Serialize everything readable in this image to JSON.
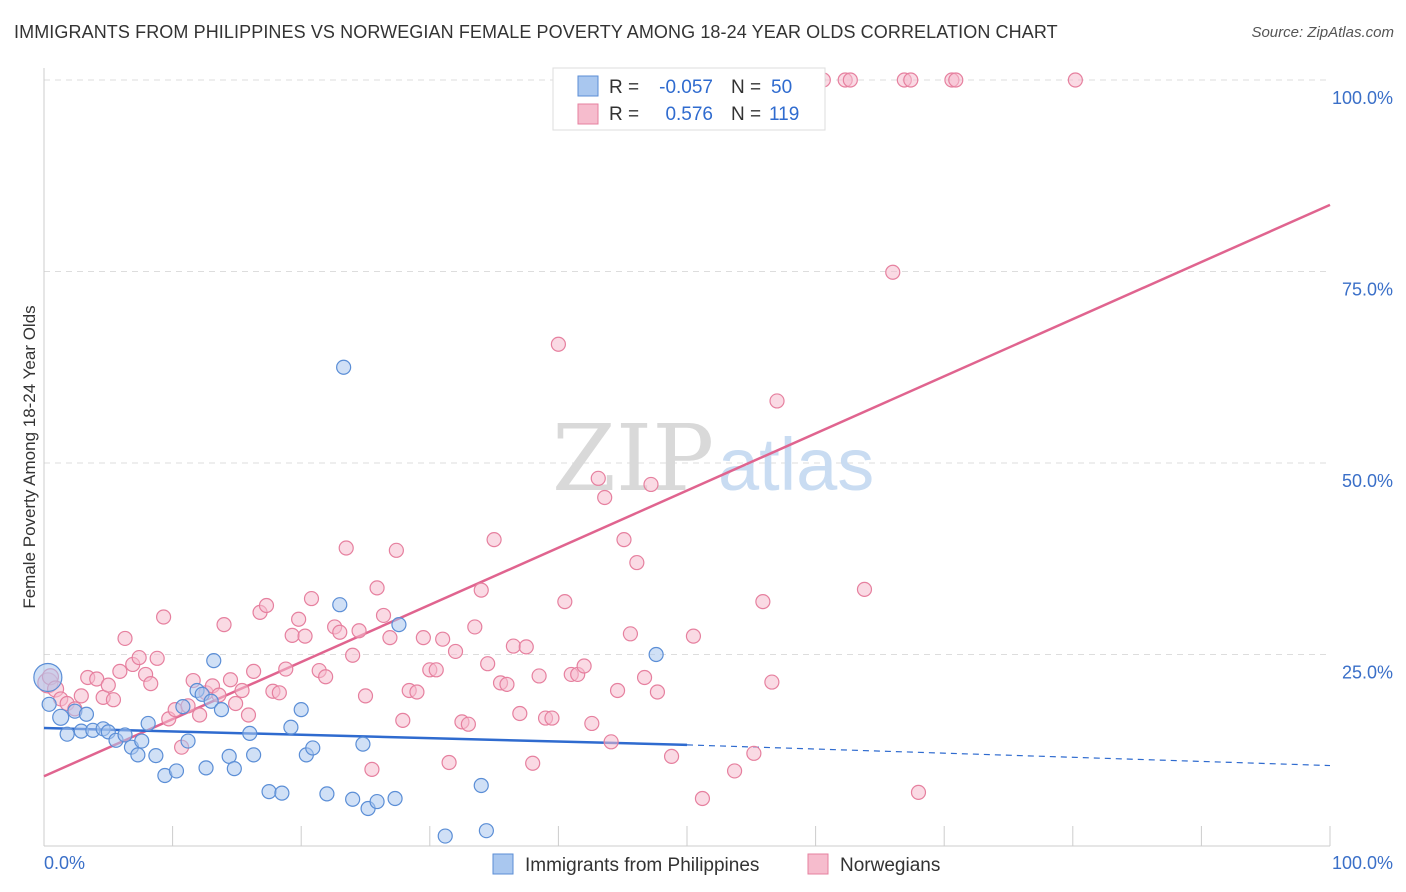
{
  "title": "IMMIGRANTS FROM PHILIPPINES VS NORWEGIAN FEMALE POVERTY AMONG 18-24 YEAR OLDS CORRELATION CHART",
  "source": "Source: ZipAtlas.com",
  "watermark": {
    "zip": "ZIP",
    "atlas": "atlas"
  },
  "legend": {
    "rows": [
      {
        "r_label": "R =",
        "r_value": "-0.057",
        "n_label": "N =",
        "n_value": "50"
      },
      {
        "r_label": "R =",
        "r_value": "0.576",
        "n_label": "N =",
        "n_value": "119"
      }
    ]
  },
  "colors": {
    "blue_fill": "#a9c7ef",
    "blue_stroke": "#5b8ed6",
    "blue_line": "#2f6bcf",
    "pink_fill": "#f6bccd",
    "pink_stroke": "#e6809f",
    "pink_line": "#e0648f",
    "grid": "#dddddd",
    "tick_label": "#3a6fc8"
  },
  "chart_data": {
    "type": "scatter",
    "title": "IMMIGRANTS FROM PHILIPPINES VS NORWEGIAN FEMALE POVERTY AMONG 18-24 YEAR OLDS CORRELATION CHART",
    "xlabel": "",
    "ylabel": "Female Poverty Among 18-24 Year Olds",
    "xlim": [
      0,
      100
    ],
    "ylim": [
      0,
      100
    ],
    "x_tick_labels": [
      "0.0%",
      "100.0%"
    ],
    "y_ticks": [
      25,
      50,
      75,
      100
    ],
    "y_tick_labels": [
      "25.0%",
      "50.0%",
      "75.0%",
      "100.0%"
    ],
    "grid": true,
    "legend_placement": "bottom",
    "series": [
      {
        "name": "Immigrants from Philippines",
        "color": "blue",
        "R": -0.057,
        "N": 50,
        "trend": {
          "x0": 0,
          "y0": 15.4,
          "x1": 50,
          "y1": 13.2,
          "dashed_to_x": 100,
          "dashed_to_y": 10.5
        },
        "points": [
          [
            0.3,
            22.0,
            14
          ],
          [
            0.4,
            18.5,
            7
          ],
          [
            1.3,
            16.8,
            8
          ],
          [
            1.8,
            14.6,
            7
          ],
          [
            2.4,
            17.6,
            7
          ],
          [
            2.9,
            15.0,
            7
          ],
          [
            3.3,
            17.2,
            7
          ],
          [
            3.8,
            15.1,
            7
          ],
          [
            4.6,
            15.3,
            7
          ],
          [
            5.0,
            14.9,
            7
          ],
          [
            5.6,
            13.8,
            7
          ],
          [
            6.3,
            14.5,
            7
          ],
          [
            6.8,
            12.9,
            7
          ],
          [
            7.3,
            11.9,
            7
          ],
          [
            7.6,
            13.7,
            7
          ],
          [
            8.1,
            16.0,
            7
          ],
          [
            8.7,
            11.8,
            7
          ],
          [
            9.4,
            9.2,
            7
          ],
          [
            10.3,
            9.8,
            7
          ],
          [
            10.8,
            18.2,
            7
          ],
          [
            11.2,
            13.7,
            7
          ],
          [
            11.9,
            20.3,
            7
          ],
          [
            12.3,
            19.8,
            7
          ],
          [
            12.6,
            10.2,
            7
          ],
          [
            13.0,
            18.9,
            7
          ],
          [
            13.2,
            24.2,
            7
          ],
          [
            13.8,
            17.8,
            7
          ],
          [
            14.4,
            11.7,
            7
          ],
          [
            14.8,
            10.1,
            7
          ],
          [
            16.0,
            14.7,
            7
          ],
          [
            16.3,
            11.9,
            7
          ],
          [
            17.5,
            7.1,
            7
          ],
          [
            18.5,
            6.9,
            7
          ],
          [
            19.2,
            15.5,
            7
          ],
          [
            20.0,
            17.8,
            7
          ],
          [
            20.4,
            11.9,
            7
          ],
          [
            20.9,
            12.8,
            7
          ],
          [
            22.0,
            6.8,
            7
          ],
          [
            23.0,
            31.5,
            7
          ],
          [
            23.3,
            62.5,
            7
          ],
          [
            24.0,
            6.1,
            7
          ],
          [
            24.8,
            13.3,
            7
          ],
          [
            25.2,
            4.9,
            7
          ],
          [
            25.9,
            5.8,
            7
          ],
          [
            27.3,
            6.2,
            7
          ],
          [
            27.6,
            28.9,
            7
          ],
          [
            31.2,
            1.3,
            7
          ],
          [
            34.0,
            7.9,
            7
          ],
          [
            34.4,
            2.0,
            7
          ],
          [
            47.6,
            25.0,
            7
          ]
        ]
      },
      {
        "name": "Norwegians",
        "color": "pink",
        "R": 0.576,
        "N": 119,
        "trend": {
          "x0": 0,
          "y0": 9.1,
          "x1": 100,
          "y1": 83.7
        },
        "points": [
          [
            0.3,
            21.3,
            10
          ],
          [
            0.5,
            22.1,
            8
          ],
          [
            0.9,
            20.5,
            8
          ],
          [
            1.3,
            19.2,
            7
          ],
          [
            1.8,
            18.6,
            7
          ],
          [
            2.4,
            17.9,
            7
          ],
          [
            2.9,
            19.6,
            7
          ],
          [
            3.4,
            22.0,
            7
          ],
          [
            4.1,
            21.8,
            7
          ],
          [
            4.6,
            19.4,
            7
          ],
          [
            5.0,
            21.0,
            7
          ],
          [
            5.4,
            19.1,
            7
          ],
          [
            5.9,
            22.8,
            7
          ],
          [
            6.3,
            27.1,
            7
          ],
          [
            6.9,
            23.7,
            7
          ],
          [
            7.4,
            24.6,
            7
          ],
          [
            7.9,
            22.4,
            7
          ],
          [
            8.3,
            21.2,
            7
          ],
          [
            8.8,
            24.5,
            7
          ],
          [
            9.3,
            29.9,
            7
          ],
          [
            9.7,
            16.6,
            7
          ],
          [
            10.2,
            17.8,
            7
          ],
          [
            10.7,
            12.9,
            7
          ],
          [
            11.2,
            18.3,
            7
          ],
          [
            11.6,
            21.6,
            7
          ],
          [
            12.1,
            17.1,
            7
          ],
          [
            12.6,
            20.0,
            7
          ],
          [
            13.1,
            20.9,
            7
          ],
          [
            13.6,
            19.7,
            7
          ],
          [
            14.0,
            28.9,
            7
          ],
          [
            14.5,
            21.7,
            7
          ],
          [
            14.9,
            18.6,
            7
          ],
          [
            15.4,
            20.3,
            7
          ],
          [
            15.9,
            17.1,
            7
          ],
          [
            16.3,
            22.8,
            7
          ],
          [
            16.8,
            30.5,
            7
          ],
          [
            17.3,
            31.4,
            7
          ],
          [
            17.8,
            20.2,
            7
          ],
          [
            18.3,
            20.0,
            7
          ],
          [
            18.8,
            23.1,
            7
          ],
          [
            19.3,
            27.5,
            7
          ],
          [
            19.8,
            29.6,
            7
          ],
          [
            20.3,
            27.4,
            7
          ],
          [
            20.8,
            32.3,
            7
          ],
          [
            21.4,
            22.9,
            7
          ],
          [
            21.9,
            22.1,
            7
          ],
          [
            22.6,
            28.6,
            7
          ],
          [
            23.0,
            27.9,
            7
          ],
          [
            23.5,
            38.9,
            7
          ],
          [
            24.0,
            24.9,
            7
          ],
          [
            24.5,
            28.1,
            7
          ],
          [
            25.0,
            19.6,
            7
          ],
          [
            25.5,
            10.0,
            7
          ],
          [
            25.9,
            33.7,
            7
          ],
          [
            26.4,
            30.1,
            7
          ],
          [
            26.9,
            27.2,
            7
          ],
          [
            27.4,
            38.6,
            7
          ],
          [
            27.9,
            16.4,
            7
          ],
          [
            28.4,
            20.3,
            7
          ],
          [
            29.0,
            20.1,
            7
          ],
          [
            29.5,
            27.2,
            7
          ],
          [
            30.0,
            23.0,
            7
          ],
          [
            30.5,
            23.0,
            7
          ],
          [
            31.0,
            27.0,
            7
          ],
          [
            31.5,
            10.9,
            7
          ],
          [
            32.0,
            25.4,
            7
          ],
          [
            32.5,
            16.2,
            7
          ],
          [
            33.0,
            15.9,
            7
          ],
          [
            33.5,
            28.6,
            7
          ],
          [
            34.0,
            33.4,
            7
          ],
          [
            34.5,
            23.8,
            7
          ],
          [
            35.0,
            40.0,
            7
          ],
          [
            35.5,
            21.3,
            7
          ],
          [
            36.0,
            21.1,
            7
          ],
          [
            36.5,
            26.1,
            7
          ],
          [
            37.0,
            17.3,
            7
          ],
          [
            37.5,
            26.0,
            7
          ],
          [
            38.0,
            10.8,
            7
          ],
          [
            38.5,
            22.2,
            7
          ],
          [
            39.0,
            16.7,
            7
          ],
          [
            39.5,
            16.7,
            7
          ],
          [
            40.0,
            65.5,
            7
          ],
          [
            40.5,
            31.9,
            7
          ],
          [
            41.0,
            22.4,
            7
          ],
          [
            41.5,
            22.4,
            7
          ],
          [
            42.0,
            23.5,
            7
          ],
          [
            42.6,
            16.0,
            7
          ],
          [
            43.1,
            48.0,
            7
          ],
          [
            43.6,
            45.5,
            7
          ],
          [
            44.1,
            13.6,
            7
          ],
          [
            44.6,
            20.3,
            7
          ],
          [
            45.1,
            40.0,
            7
          ],
          [
            45.6,
            27.7,
            7
          ],
          [
            46.1,
            37.0,
            7
          ],
          [
            46.7,
            22.0,
            7
          ],
          [
            47.2,
            47.2,
            7
          ],
          [
            47.7,
            20.1,
            7
          ],
          [
            48.8,
            11.7,
            7
          ],
          [
            50.5,
            27.4,
            7
          ],
          [
            51.2,
            6.2,
            7
          ],
          [
            53.7,
            9.8,
            7
          ],
          [
            55.9,
            31.9,
            7
          ],
          [
            56.6,
            21.4,
            7
          ],
          [
            57.0,
            58.1,
            7
          ],
          [
            63.8,
            33.5,
            7
          ],
          [
            66.0,
            74.9,
            7
          ],
          [
            68.0,
            7.0,
            7
          ],
          [
            55.2,
            12.1,
            7
          ],
          [
            56.9,
            100.0,
            7
          ],
          [
            60.2,
            100.0,
            7
          ],
          [
            60.6,
            100.0,
            7
          ],
          [
            62.3,
            100.0,
            7
          ],
          [
            62.7,
            100.0,
            7
          ],
          [
            66.9,
            100.0,
            7
          ],
          [
            67.4,
            100.0,
            7
          ],
          [
            70.6,
            100.0,
            7
          ],
          [
            70.9,
            100.0,
            7
          ],
          [
            80.2,
            100.0,
            7
          ],
          [
            50.0,
            100.0,
            7
          ]
        ]
      }
    ]
  }
}
